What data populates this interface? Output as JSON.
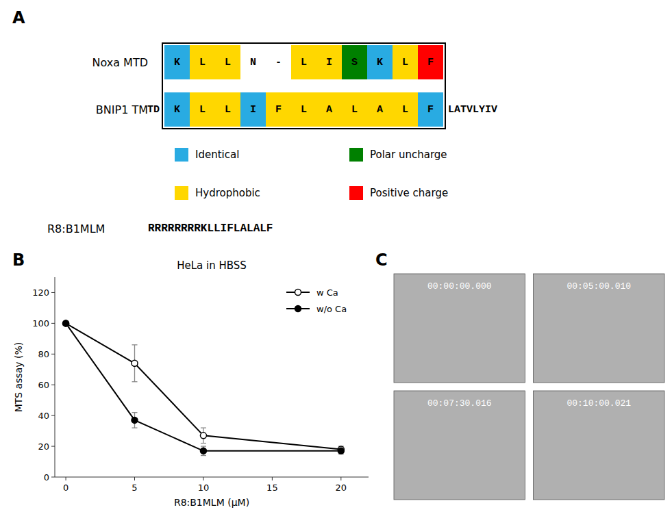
{
  "chart_data": [
    {
      "type": "alignment",
      "annotations": [
        "A",
        "R8:B1MLM",
        "RRRRRRRRKLLIFLALALF"
      ],
      "series": [
        {
          "name": "Noxa  MTD",
          "residues": [
            "K",
            "L",
            "L",
            "N",
            "-",
            "L",
            "I",
            "S",
            "K",
            "L",
            "F"
          ],
          "colors": [
            "#29ABE2",
            "#FFD700",
            "#FFD700",
            "#FFFFFF",
            "#FFFFFF",
            "#FFD700",
            "#FFD700",
            "#008000",
            "#29ABE2",
            "#FFD700",
            "#FF0000"
          ]
        },
        {
          "name": "BNIP1  TM",
          "prefix": "TD",
          "residues": [
            "K",
            "L",
            "L",
            "I",
            "F",
            "L",
            "A",
            "L",
            "A",
            "L",
            "F"
          ],
          "suffix": "LATVLYIV",
          "colors": [
            "#29ABE2",
            "#FFD700",
            "#FFD700",
            "#29ABE2",
            "#FFD700",
            "#FFD700",
            "#FFD700",
            "#FFD700",
            "#FFD700",
            "#FFD700",
            "#29ABE2"
          ]
        }
      ],
      "categories": [
        "Identical",
        "Polar uncharge",
        "Hydrophobic",
        "Positive charge"
      ],
      "colors": [
        "#29ABE2",
        "#008000",
        "#FFD700",
        "#FF0000"
      ]
    },
    {
      "type": "line",
      "annotations": [
        "B"
      ],
      "title": "HeLa in HBSS",
      "xlabel": "R8:B1MLM (μM)",
      "ylabel": "MTS assay (%)",
      "x": [
        0,
        5,
        10,
        20
      ],
      "series": [
        {
          "name": "w Ca",
          "color": "#000000",
          "marker": "open-circle",
          "line_style": "solid",
          "values": [
            100,
            74,
            27,
            18
          ],
          "errors": [
            0,
            12,
            5,
            2
          ]
        },
        {
          "name": "w/o Ca",
          "color": "#000000",
          "marker": "filled-circle",
          "line_style": "solid",
          "values": [
            100,
            37,
            17,
            17
          ],
          "errors": [
            0,
            5,
            3,
            2
          ]
        }
      ],
      "xlim": [
        -0.8,
        22
      ],
      "ylim": [
        0,
        130
      ],
      "xticks": [
        0,
        5,
        10,
        15,
        20
      ],
      "yticks": [
        0,
        20,
        40,
        60,
        80,
        100,
        120
      ],
      "legend": "upper right",
      "grid": false
    },
    {
      "type": "image_grid",
      "annotations": [
        "C"
      ],
      "categories": [
        "00:00:00.000",
        "00:05:00.010",
        "00:07:30.016",
        "00:10:00.021"
      ],
      "color": "#B0B0B0"
    }
  ]
}
